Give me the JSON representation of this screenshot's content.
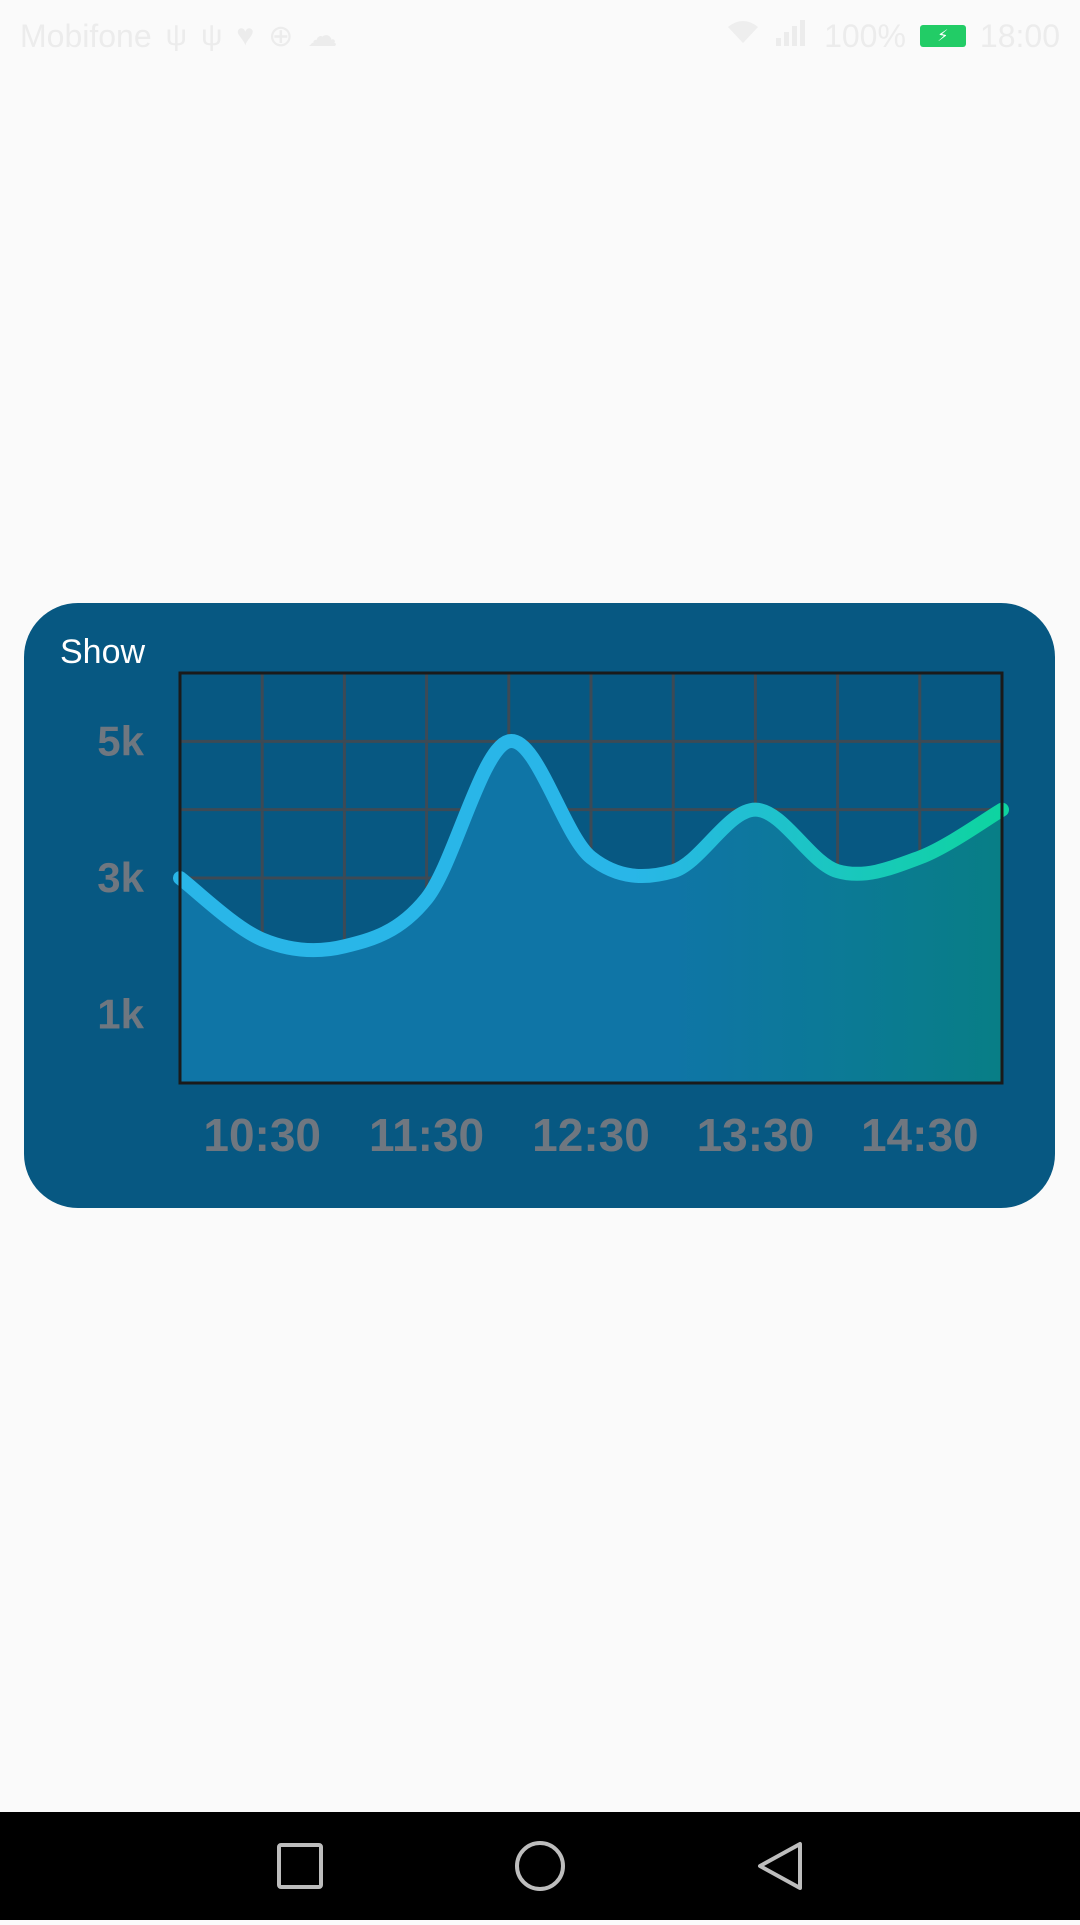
{
  "status_bar": {
    "carrier": "Mobifone",
    "battery_percent": "100%",
    "time": "18:00",
    "left_icons": [
      "usb-icon",
      "usb-icon",
      "heart-icon",
      "sync-icon",
      "cloud-icon"
    ],
    "right_icons": [
      "wifi-icon",
      "signal-icon",
      "battery-charging-icon"
    ]
  },
  "card": {
    "title": "Show",
    "background": "#075882"
  },
  "chart_data": {
    "type": "area",
    "x": [
      "10:00",
      "10:30",
      "11:00",
      "11:30",
      "12:00",
      "12:30",
      "13:00",
      "13:30",
      "14:00",
      "14:30",
      "15:00"
    ],
    "values": [
      3.0,
      2.1,
      2.0,
      2.7,
      5.0,
      3.3,
      3.1,
      4.0,
      3.1,
      3.3,
      4.0
    ],
    "xticks": [
      "10:30",
      "11:30",
      "12:30",
      "13:30",
      "14:30"
    ],
    "yticks": [
      "1k",
      "3k",
      "5k"
    ],
    "ylim": [
      0,
      6
    ],
    "grid": true,
    "line_colors": [
      "#29b6e8",
      "#0ed4a0"
    ],
    "fill_colors": [
      "#0f75a6",
      "#087e86"
    ]
  },
  "nav_bar": {
    "buttons": [
      "recent-apps-button",
      "home-button",
      "back-button"
    ]
  }
}
